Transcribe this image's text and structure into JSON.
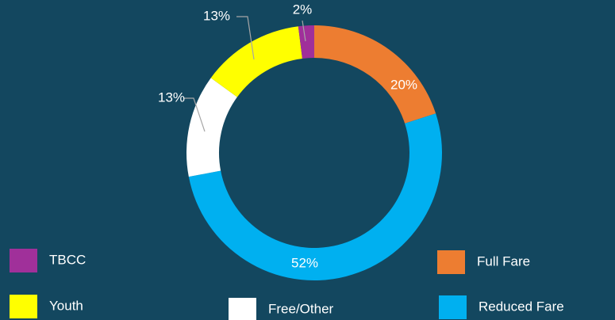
{
  "chart_data": {
    "type": "pie",
    "categories": [
      "Full Fare",
      "Reduced Fare",
      "Free/Other",
      "Youth",
      "TBCC"
    ],
    "values": [
      20,
      52,
      13,
      13,
      2
    ],
    "value_labels": [
      "20%",
      "52%",
      "13%",
      "13%",
      "2%"
    ],
    "colors": [
      "#ed7d31",
      "#00b0f0",
      "#ffffff",
      "#ffff00",
      "#a0309a"
    ]
  }
}
